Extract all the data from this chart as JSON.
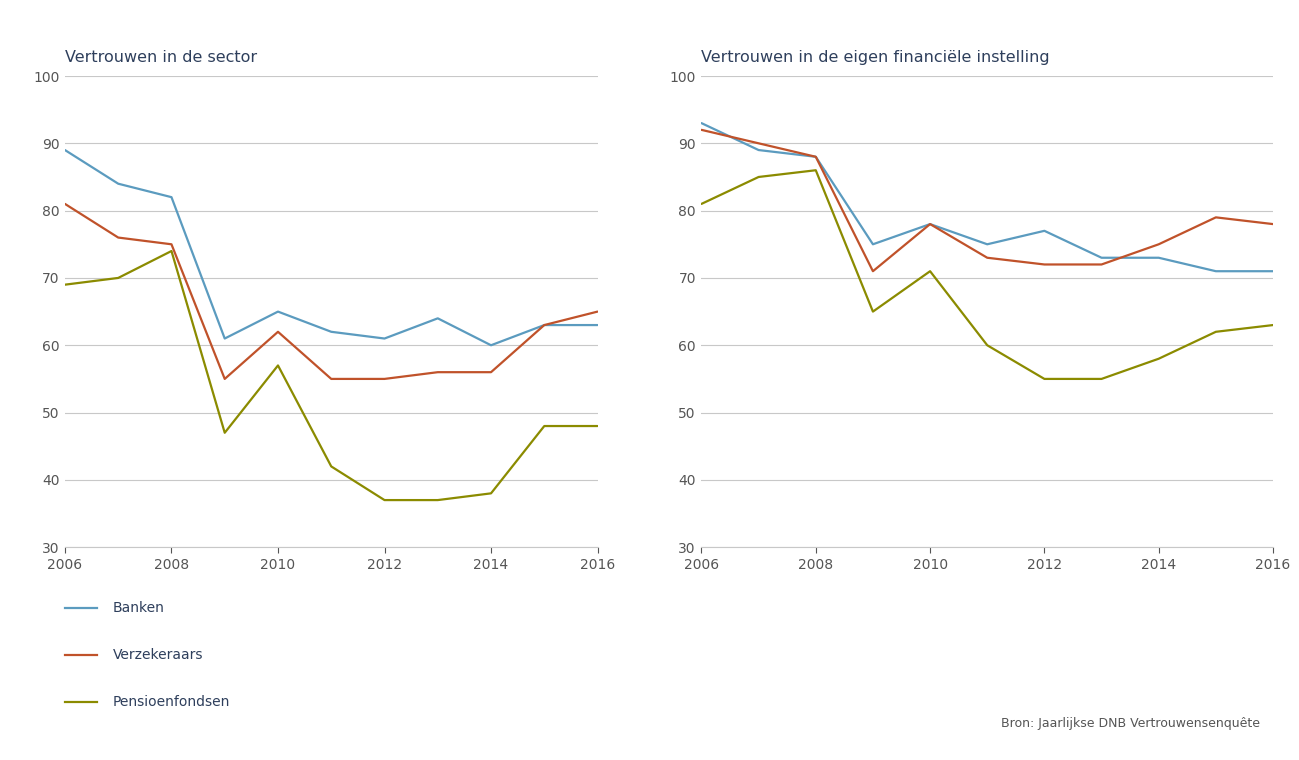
{
  "years": [
    2006,
    2007,
    2008,
    2009,
    2010,
    2011,
    2012,
    2013,
    2014,
    2015,
    2016
  ],
  "left_chart": {
    "title": "Vertrouwen in de sector",
    "banken": [
      89,
      84,
      82,
      61,
      65,
      62,
      61,
      64,
      60,
      63,
      63
    ],
    "verzekeraars": [
      81,
      76,
      75,
      55,
      62,
      55,
      55,
      56,
      56,
      63,
      65
    ],
    "pensioenfondsen": [
      69,
      70,
      74,
      47,
      57,
      42,
      37,
      37,
      38,
      48,
      48
    ]
  },
  "right_chart": {
    "title": "Vertrouwen in de eigen financiële instelling",
    "banken": [
      93,
      89,
      88,
      75,
      78,
      75,
      77,
      73,
      73,
      71,
      71
    ],
    "verzekeraars": [
      92,
      90,
      88,
      71,
      78,
      73,
      72,
      72,
      75,
      79,
      78
    ],
    "pensioenfondsen": [
      81,
      85,
      86,
      65,
      71,
      60,
      55,
      55,
      58,
      62,
      63
    ]
  },
  "colors": {
    "banken": "#5b9bbf",
    "verzekeraars": "#c0522a",
    "pensioenfondsen": "#8b8b00"
  },
  "legend_labels": {
    "banken": "Banken",
    "verzekeraars": "Verzekeraars",
    "pensioenfondsen": "Pensioenfondsen"
  },
  "source_text": "Bron: Jaarlijkse DNB Vertrouwensenquête",
  "ylim": [
    30,
    100
  ],
  "yticks": [
    30,
    40,
    50,
    60,
    70,
    80,
    90,
    100
  ],
  "xticks": [
    2006,
    2008,
    2010,
    2012,
    2014,
    2016
  ],
  "title_color": "#2e3f5c",
  "tick_color": "#555555",
  "grid_color": "#c8c8c8",
  "line_width": 1.6,
  "background_color": "#ffffff"
}
